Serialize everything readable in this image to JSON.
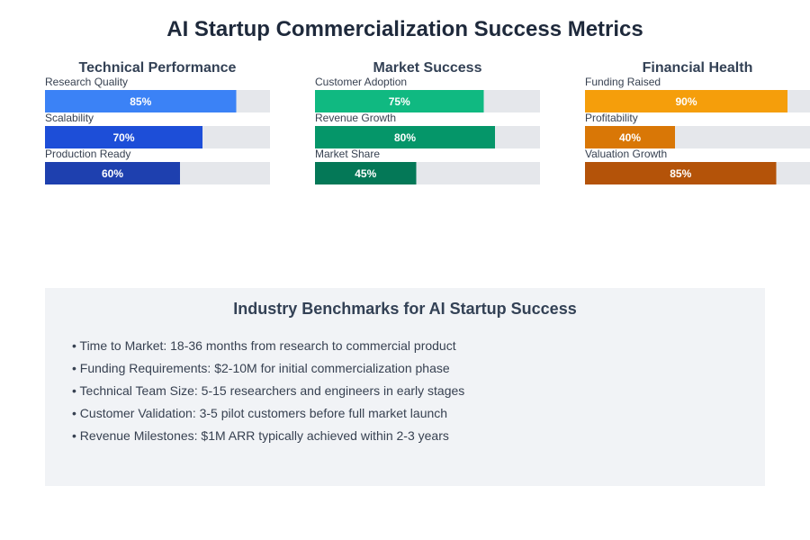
{
  "chart_data": {
    "type": "bar",
    "title": "AI Startup Commercialization Success Metrics",
    "orientation": "horizontal",
    "unit": "%",
    "xlim": [
      0,
      100
    ],
    "groups": [
      {
        "name": "Technical Performance",
        "metrics": [
          {
            "label": "Research Quality",
            "value": 85,
            "color": "#3b82f6"
          },
          {
            "label": "Scalability",
            "value": 70,
            "color": "#1d4ed8"
          },
          {
            "label": "Production Ready",
            "value": 60,
            "color": "#1e40af"
          }
        ]
      },
      {
        "name": "Market Success",
        "metrics": [
          {
            "label": "Customer Adoption",
            "value": 75,
            "color": "#10b981"
          },
          {
            "label": "Revenue Growth",
            "value": 80,
            "color": "#059669"
          },
          {
            "label": "Market Share",
            "value": 45,
            "color": "#047857"
          }
        ]
      },
      {
        "name": "Financial Health",
        "metrics": [
          {
            "label": "Funding Raised",
            "value": 90,
            "color": "#f59e0b"
          },
          {
            "label": "Profitability",
            "value": 40,
            "color": "#d97706"
          },
          {
            "label": "Valuation Growth",
            "value": 85,
            "color": "#b45309"
          }
        ]
      }
    ],
    "track_color": "#e5e7eb"
  },
  "benchmarks": {
    "title": "Industry Benchmarks for AI Startup Success",
    "items": [
      "• Time to Market: 18-36 months from research to commercial product",
      "• Funding Requirements: $2-10M for initial commercialization phase",
      "• Technical Team Size: 5-15 researchers and engineers in early stages",
      "• Customer Validation: 3-5 pilot customers before full market launch",
      "• Revenue Milestones: $1M ARR typically achieved within 2-3 years"
    ]
  }
}
